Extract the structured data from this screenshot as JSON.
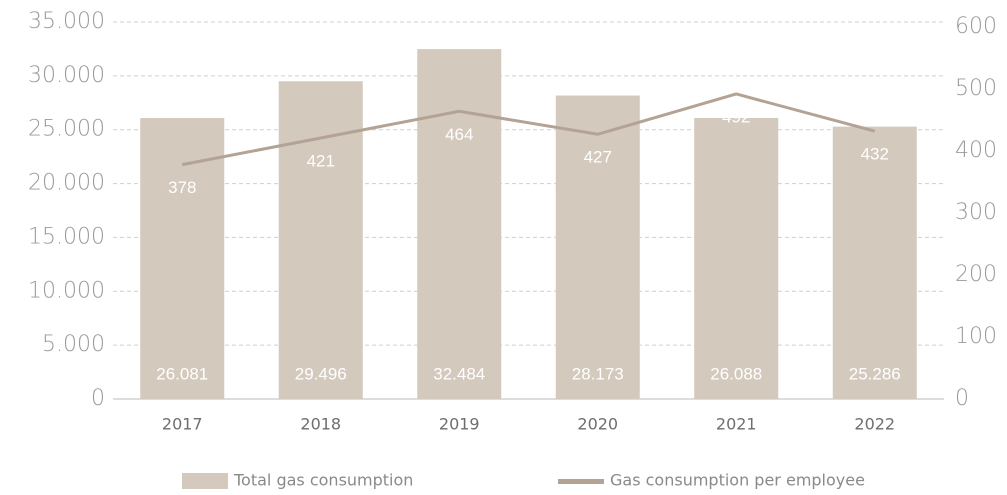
{
  "chart_data": {
    "type": "bar",
    "categories": [
      "2017",
      "2018",
      "2019",
      "2020",
      "2021",
      "2022"
    ],
    "series": [
      {
        "name": "Total gas consumption",
        "type": "bar",
        "color": "#d4c9bd",
        "values": [
          26081,
          29496,
          32484,
          28173,
          26088,
          25286
        ],
        "value_labels": [
          "26.081",
          "29.496",
          "32.484",
          "28.173",
          "26.088",
          "25.286"
        ]
      },
      {
        "name": "Gas consumption per employee",
        "type": "line",
        "axis": "y2",
        "color": "#b3a395",
        "values": [
          378,
          421,
          464,
          427,
          492,
          432
        ]
      }
    ],
    "ylim": [
      0,
      35000
    ],
    "yticks": [
      0,
      {
        "value": 5000,
        "label": "5.000"
      },
      {
        "value": 10000,
        "label": "10.000"
      },
      {
        "value": 15000,
        "label": "15.000"
      },
      {
        "value": 20000,
        "label": "20.000"
      },
      {
        "value": 25000,
        "label": "25.000"
      },
      {
        "value": 30000,
        "label": "30.000"
      },
      {
        "value": 35000,
        "label": "35.000"
      }
    ],
    "y2lim": [
      0,
      600
    ],
    "y2ticks": [
      0,
      100,
      200,
      300,
      400,
      500,
      600
    ],
    "grid": true,
    "legend": "bottom"
  }
}
